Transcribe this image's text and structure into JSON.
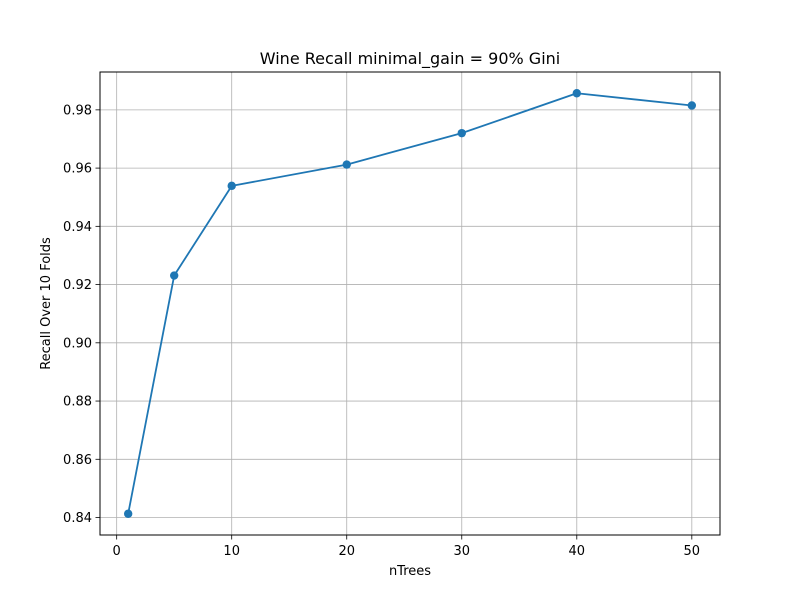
{
  "chart_data": {
    "type": "line",
    "title": "Wine Recall minimal_gain = 90% Gini",
    "xlabel": "nTrees",
    "ylabel": "Recall Over 10 Folds",
    "xlim": [
      -1.45,
      52.45
    ],
    "ylim": [
      0.834,
      0.993
    ],
    "x_ticks": [
      0,
      10,
      20,
      30,
      40,
      50
    ],
    "x_tick_labels": [
      "0",
      "10",
      "20",
      "30",
      "40",
      "50"
    ],
    "y_ticks": [
      0.84,
      0.86,
      0.88,
      0.9,
      0.92,
      0.94,
      0.96,
      0.98
    ],
    "y_tick_labels": [
      "0.84",
      "0.86",
      "0.88",
      "0.90",
      "0.92",
      "0.94",
      "0.96",
      "0.98"
    ],
    "grid": true,
    "series": [
      {
        "x": [
          1,
          5,
          10,
          20,
          30,
          40,
          50
        ],
        "y": [
          0.8413,
          0.9231,
          0.9539,
          0.9612,
          0.972,
          0.9857,
          0.9815
        ],
        "color": "#1f77b4",
        "marker": "circle"
      }
    ]
  }
}
